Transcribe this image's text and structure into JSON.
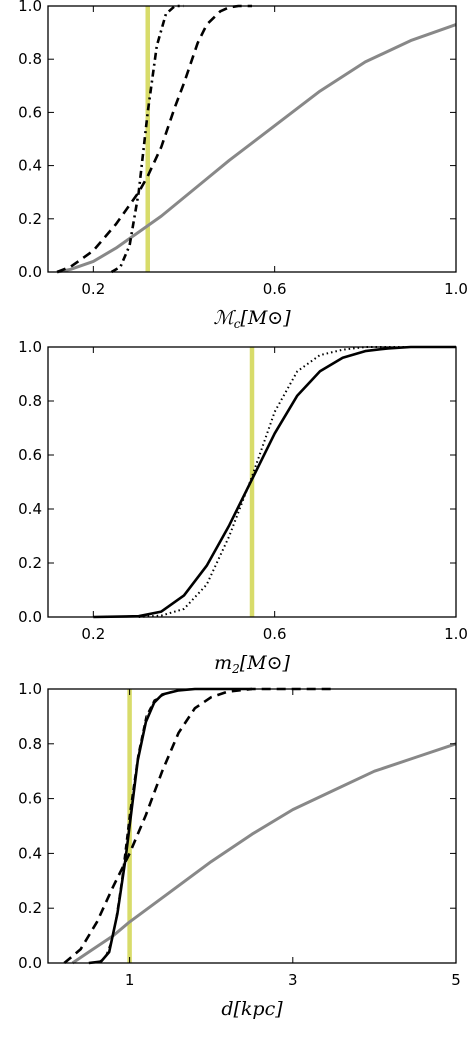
{
  "chart_data": [
    {
      "type": "line",
      "xlim": [
        0.1,
        1.0
      ],
      "ylim": [
        0.0,
        1.0
      ],
      "xticks": [
        0.2,
        0.6,
        1.0
      ],
      "xtick_labels": [
        "0.2",
        "0.6",
        "1.0"
      ],
      "yticks": [
        0.0,
        0.2,
        0.4,
        0.6,
        0.8,
        1.0
      ],
      "ytick_labels": [
        "0.0",
        "0.2",
        "0.4",
        "0.6",
        "0.8",
        "1.0"
      ],
      "xlabel": "ℳc[M⊙]",
      "vline": {
        "x": 0.32,
        "color": "#d8dc6a"
      },
      "series": [
        {
          "style": "gray",
          "color": "#888888",
          "x": [
            0.12,
            0.15,
            0.2,
            0.25,
            0.3,
            0.35,
            0.4,
            0.45,
            0.5,
            0.6,
            0.7,
            0.8,
            0.9,
            1.0
          ],
          "y": [
            0.0,
            0.01,
            0.04,
            0.09,
            0.15,
            0.21,
            0.28,
            0.35,
            0.42,
            0.55,
            0.68,
            0.79,
            0.87,
            0.93
          ]
        },
        {
          "style": "dashed",
          "color": "#000000",
          "x": [
            0.12,
            0.15,
            0.2,
            0.25,
            0.3,
            0.32,
            0.35,
            0.38,
            0.4,
            0.43,
            0.45,
            0.48,
            0.5,
            0.52,
            0.55
          ],
          "y": [
            0.0,
            0.02,
            0.08,
            0.18,
            0.3,
            0.36,
            0.47,
            0.62,
            0.71,
            0.86,
            0.93,
            0.98,
            0.995,
            1.0,
            1.0
          ]
        },
        {
          "style": "dashdot",
          "color": "#000000",
          "x": [
            0.24,
            0.26,
            0.28,
            0.3,
            0.32,
            0.34,
            0.36,
            0.38,
            0.4
          ],
          "y": [
            0.0,
            0.02,
            0.1,
            0.3,
            0.6,
            0.85,
            0.97,
            1.0,
            1.0
          ]
        }
      ]
    },
    {
      "type": "line",
      "xlim": [
        0.1,
        1.0
      ],
      "ylim": [
        0.0,
        1.0
      ],
      "xticks": [
        0.2,
        0.6,
        1.0
      ],
      "xtick_labels": [
        "0.2",
        "0.6",
        "1.0"
      ],
      "yticks": [
        0.0,
        0.2,
        0.4,
        0.6,
        0.8,
        1.0
      ],
      "ytick_labels": [
        "0.0",
        "0.2",
        "0.4",
        "0.6",
        "0.8",
        "1.0"
      ],
      "xlabel": "m2[M⊙]",
      "vline": {
        "x": 0.55,
        "color": "#d8dc6a"
      },
      "series": [
        {
          "style": "solid",
          "color": "#000000",
          "x": [
            0.2,
            0.3,
            0.35,
            0.4,
            0.45,
            0.5,
            0.55,
            0.6,
            0.65,
            0.7,
            0.75,
            0.8,
            0.85,
            0.9,
            1.0
          ],
          "y": [
            0.0,
            0.003,
            0.02,
            0.08,
            0.19,
            0.34,
            0.51,
            0.68,
            0.82,
            0.91,
            0.96,
            0.985,
            0.995,
            1.0,
            1.0
          ]
        },
        {
          "style": "dotted",
          "color": "#000000",
          "x": [
            0.3,
            0.35,
            0.4,
            0.45,
            0.5,
            0.55,
            0.6,
            0.65,
            0.7,
            0.75,
            0.8,
            0.9,
            1.0
          ],
          "y": [
            0.0,
            0.005,
            0.03,
            0.12,
            0.3,
            0.52,
            0.76,
            0.91,
            0.97,
            0.99,
            1.0,
            1.0,
            1.0
          ]
        }
      ]
    },
    {
      "type": "line",
      "xlim": [
        0.0,
        5.0
      ],
      "ylim": [
        0.0,
        1.0
      ],
      "xticks": [
        1,
        3,
        5
      ],
      "xtick_labels": [
        "1",
        "3",
        "5"
      ],
      "yticks": [
        0.0,
        0.2,
        0.4,
        0.6,
        0.8,
        1.0
      ],
      "ytick_labels": [
        "0.0",
        "0.2",
        "0.4",
        "0.6",
        "0.8",
        "1.0"
      ],
      "xlabel": "d[kpc]",
      "vline": {
        "x": 1.0,
        "color": "#d8dc6a"
      },
      "series": [
        {
          "style": "gray",
          "color": "#888888",
          "x": [
            0.3,
            0.5,
            0.8,
            1.0,
            1.5,
            2.0,
            2.5,
            3.0,
            3.5,
            4.0,
            4.5,
            5.0
          ],
          "y": [
            0.0,
            0.04,
            0.1,
            0.15,
            0.26,
            0.37,
            0.47,
            0.56,
            0.63,
            0.7,
            0.75,
            0.8
          ]
        },
        {
          "style": "dashed",
          "color": "#000000",
          "x": [
            0.2,
            0.4,
            0.6,
            0.8,
            1.0,
            1.2,
            1.4,
            1.6,
            1.8,
            2.0,
            2.2,
            2.5,
            3.0,
            3.5
          ],
          "y": [
            0.0,
            0.05,
            0.15,
            0.28,
            0.4,
            0.54,
            0.7,
            0.84,
            0.93,
            0.97,
            0.99,
            1.0,
            1.0,
            1.0
          ]
        },
        {
          "style": "solid",
          "color": "#000000",
          "x": [
            0.5,
            0.65,
            0.75,
            0.85,
            0.95,
            1.0,
            1.1,
            1.2,
            1.3,
            1.4,
            1.6,
            1.8,
            2.0,
            2.5
          ],
          "y": [
            0.0,
            0.005,
            0.04,
            0.18,
            0.38,
            0.5,
            0.74,
            0.88,
            0.95,
            0.98,
            0.995,
            1.0,
            1.0,
            1.0
          ]
        },
        {
          "style": "thin-dashed",
          "color": "#000000",
          "x": [
            0.6,
            0.7,
            0.8,
            0.9,
            1.0,
            1.1,
            1.2,
            1.3,
            1.5,
            1.7,
            2.0
          ],
          "y": [
            0.0,
            0.02,
            0.1,
            0.3,
            0.55,
            0.76,
            0.9,
            0.96,
            0.99,
            1.0,
            1.0
          ]
        }
      ]
    }
  ]
}
